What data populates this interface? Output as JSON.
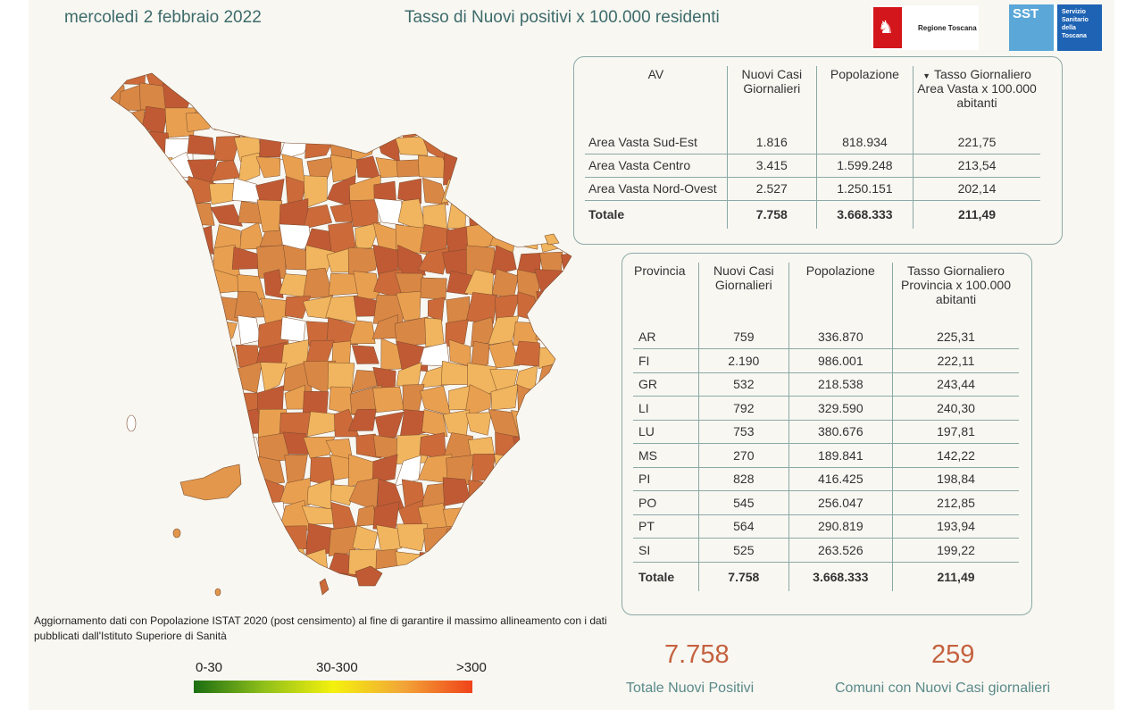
{
  "header": {
    "date": "mercoledì 2 febbraio 2022",
    "title": "Tasso di Nuovi positivi x 100.000 residenti",
    "logo_toscana": "Regione Toscana",
    "logo_sst_short": "SST",
    "logo_sst_text": "Servizio Sanitario della Toscana"
  },
  "av_table": {
    "headers": [
      "AV",
      "Nuovi Casi Giornalieri",
      "Popolazione",
      "Tasso Giornaliero Area Vasta x 100.000 abitanti"
    ],
    "sort_icon": "sort-descending-icon",
    "rows": [
      [
        "Area Vasta Sud-Est",
        "1.816",
        "818.934",
        "221,75"
      ],
      [
        "Area Vasta Centro",
        "3.415",
        "1.599.248",
        "213,54"
      ],
      [
        "Area Vasta Nord-Ovest",
        "2.527",
        "1.250.151",
        "202,14"
      ]
    ],
    "total": [
      "Totale",
      "7.758",
      "3.668.333",
      "211,49"
    ]
  },
  "prov_table": {
    "headers": [
      "Provincia",
      "Nuovi Casi Giornalieri",
      "Popolazione",
      "Tasso Giornaliero Provincia x 100.000 abitanti"
    ],
    "rows": [
      [
        "AR",
        "759",
        "336.870",
        "225,31"
      ],
      [
        "FI",
        "2.190",
        "986.001",
        "222,11"
      ],
      [
        "GR",
        "532",
        "218.538",
        "243,44"
      ],
      [
        "LI",
        "792",
        "329.590",
        "240,30"
      ],
      [
        "LU",
        "753",
        "380.676",
        "197,81"
      ],
      [
        "MS",
        "270",
        "189.841",
        "142,22"
      ],
      [
        "PI",
        "828",
        "416.425",
        "198,84"
      ],
      [
        "PO",
        "545",
        "256.047",
        "212,85"
      ],
      [
        "PT",
        "564",
        "290.819",
        "193,94"
      ],
      [
        "SI",
        "525",
        "263.526",
        "199,22"
      ]
    ],
    "total": [
      "Totale",
      "7.758",
      "3.668.333",
      "211,49"
    ]
  },
  "note": "Aggiornamento dati con Popolazione ISTAT 2020 (post censimento) al fine di garantire il massimo allineamento con i dati pubblicati dall'Istituto Superiore di Sanità",
  "legend": {
    "labels": [
      "0-30",
      "30-300",
      ">300"
    ],
    "colors": [
      "#1b6e12",
      "#f4f10e",
      "#f0431a"
    ]
  },
  "kpi": {
    "total_value": "7.758",
    "total_label": "Totale Nuovi Positivi",
    "municipalities_value": "259",
    "municipalities_label": "Comuni con Nuovi Casi giornalieri"
  },
  "map": {
    "name": "Tuscany municipalities choropleth",
    "fill_colors": [
      "#e8a050",
      "#d88745",
      "#cc6a3a",
      "#c05a35",
      "#f0b55e",
      "#ffffff"
    ]
  }
}
